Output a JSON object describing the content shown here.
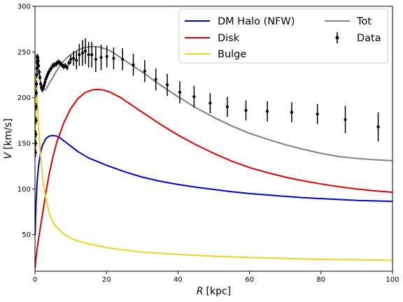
{
  "chart_data": {
    "type": "line",
    "title": "",
    "xlabel_italic": "R",
    "xlabel_unit": "[kpc]",
    "ylabel_italic": "V",
    "ylabel_unit": "[km/s]",
    "xlim": [
      0,
      100
    ],
    "ylim": [
      10,
      300
    ],
    "xticks": [
      0,
      20,
      40,
      60,
      80,
      100
    ],
    "yticks": [
      50,
      100,
      150,
      200,
      250,
      300
    ],
    "grid": false,
    "legend_position": "top-right",
    "series": [
      {
        "name": "DM Halo (NFW)",
        "color": "#0000cc",
        "x": [
          0.05,
          0.3,
          0.6,
          1,
          1.5,
          2,
          3,
          4,
          5,
          6,
          7,
          8,
          10,
          12,
          15,
          20,
          25,
          30,
          35,
          40,
          45,
          50,
          55,
          60,
          65,
          70,
          75,
          80,
          85,
          90,
          95,
          100
        ],
        "y": [
          50,
          85,
          108,
          125,
          138,
          147,
          155,
          158,
          158.5,
          158,
          156,
          153,
          147,
          141,
          134,
          126,
          119,
          113,
          108.5,
          105,
          102,
          99.5,
          97,
          95,
          93.5,
          92,
          90.5,
          89.5,
          88.5,
          87.5,
          87,
          86.5
        ]
      },
      {
        "name": "Disk",
        "color": "#dd0000",
        "x": [
          0,
          0.3,
          0.6,
          1,
          1.5,
          2,
          3,
          4,
          5,
          6,
          8,
          10,
          12,
          14,
          16,
          17.5,
          19,
          21,
          24,
          27,
          30,
          35,
          40,
          45,
          50,
          55,
          60,
          65,
          70,
          75,
          80,
          85,
          90,
          95,
          100
        ],
        "y": [
          13,
          25,
          35,
          45,
          58,
          70,
          95,
          117,
          135,
          150,
          172,
          188,
          199,
          205.5,
          208.5,
          209,
          208.5,
          206,
          200,
          192,
          184,
          171,
          159,
          148.5,
          139,
          130.5,
          123.5,
          118,
          113,
          109,
          105.5,
          102.5,
          100,
          98,
          96.5
        ]
      },
      {
        "name": "Bulge",
        "color": "#f0d020",
        "x": [
          0.05,
          0.2,
          0.35,
          0.5,
          0.7,
          1,
          1.5,
          2,
          2.5,
          3,
          4,
          5,
          6,
          8,
          10,
          12,
          15,
          20,
          25,
          30,
          40,
          50,
          60,
          70,
          80,
          90,
          100
        ],
        "y": [
          150,
          225,
          218,
          205,
          188,
          168,
          140,
          118,
          102,
          90,
          73,
          64,
          58,
          51,
          46,
          43,
          40,
          36,
          33,
          31,
          28.5,
          26.5,
          25,
          24,
          23,
          22.5,
          22
        ]
      },
      {
        "name": "Tot",
        "color": "#808080",
        "x": [
          0.05,
          0.3,
          0.6,
          1,
          1.5,
          2,
          2.5,
          3,
          3.5,
          4,
          5,
          6,
          7,
          8,
          9,
          10,
          12,
          14,
          16,
          18,
          20,
          22,
          25,
          30,
          35,
          40,
          45,
          50,
          55,
          60,
          65,
          70,
          75,
          80,
          85,
          90,
          95,
          100
        ],
        "y": [
          248,
          245,
          238,
          228,
          218,
          211,
          208.5,
          209,
          212,
          216,
          222,
          229,
          235,
          240,
          244,
          247,
          252,
          255,
          256,
          255.5,
          253,
          249,
          241,
          228,
          214,
          201,
          189,
          178.5,
          169,
          161,
          154.5,
          148.5,
          143.5,
          139,
          135.5,
          133.5,
          132,
          131
        ]
      }
    ],
    "data_points": {
      "name": "Data",
      "color": "#000000",
      "x": [
        0.15,
        0.2,
        0.25,
        0.3,
        0.35,
        0.4,
        0.45,
        0.5,
        0.55,
        0.6,
        0.65,
        0.7,
        0.8,
        0.9,
        1.0,
        1.2,
        1.4,
        1.6,
        1.8,
        2.0,
        2.2,
        2.4,
        2.6,
        2.8,
        3.0,
        3.3,
        3.6,
        4.0,
        4.5,
        5.0,
        5.5,
        6.0,
        6.5,
        7.0,
        7.5,
        8.0,
        8.5,
        9.0,
        9.5,
        10.0,
        10.8,
        11.6,
        12.4,
        13.3,
        14.1,
        15.0,
        15.9,
        17.0,
        18.5,
        20.1,
        22.0,
        24.5,
        27.5,
        30.7,
        33.8,
        37.0,
        40.5,
        44.5,
        49.0,
        53.8,
        59.0,
        65.0,
        71.8,
        79.0,
        86.8,
        96.0
      ],
      "y": [
        140,
        150,
        160,
        175,
        190,
        205,
        215,
        225,
        232,
        238,
        240,
        245,
        243,
        240,
        235,
        228,
        222,
        215,
        211,
        209,
        210,
        212,
        214,
        217,
        220,
        223,
        226,
        229,
        232,
        235,
        236,
        237,
        239,
        238,
        236,
        234,
        235,
        233,
        238,
        242,
        243,
        241,
        247,
        249,
        251,
        247,
        247,
        242,
        244,
        245,
        243,
        242,
        236,
        229,
        220,
        214,
        206,
        201,
        194,
        190,
        186,
        185,
        184,
        182,
        176,
        168
      ],
      "err": [
        5,
        4,
        4,
        4,
        4,
        4,
        4,
        4,
        4,
        3,
        3,
        3,
        3,
        3,
        3,
        3,
        3,
        3,
        3,
        3,
        3,
        3,
        3,
        3,
        3,
        3,
        3,
        3,
        3,
        3,
        3,
        3,
        3,
        3,
        3,
        3,
        3,
        3,
        3,
        5,
        8,
        10,
        12,
        14,
        14,
        14,
        14,
        14,
        14,
        12,
        12,
        12,
        12,
        12,
        12,
        12,
        12,
        12,
        11,
        11,
        11,
        11,
        11,
        11,
        15,
        16
      ]
    }
  }
}
